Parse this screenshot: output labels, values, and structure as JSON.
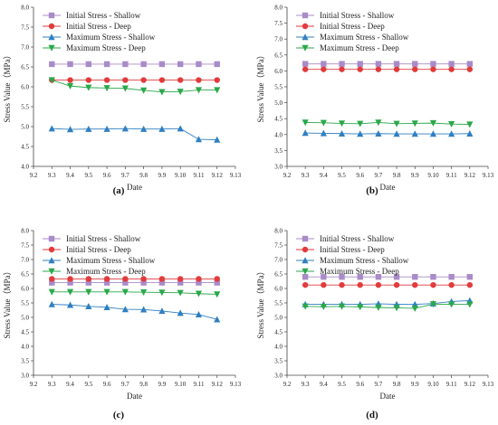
{
  "colors": {
    "initial_shallow": "#a98bc8",
    "initial_deep": "#e23b3b",
    "max_shallow": "#2f7fc1",
    "max_deep": "#2aa84a",
    "axis": "#444444"
  },
  "chart_data": [
    {
      "type": "line",
      "panel_label": "(a)",
      "xlabel": "Date",
      "ylabel": "Stress Value（MPa）",
      "x": [
        9.3,
        9.4,
        9.5,
        9.6,
        9.7,
        9.8,
        9.9,
        9.1,
        9.11,
        9.12
      ],
      "xlim": [
        9.2,
        9.13
      ],
      "x_ticks": [
        "9.2",
        "9.3",
        "9.4",
        "9.5",
        "9.6",
        "9.7",
        "9.8",
        "9.9",
        "9.10",
        "9.11",
        "9.12",
        "9.13"
      ],
      "ylim": [
        4.0,
        8.0
      ],
      "y_ticks": [
        "4.0",
        "4.5",
        "5.0",
        "5.5",
        "6.0",
        "6.5",
        "7.0",
        "7.5",
        "8.0"
      ],
      "legend_position": "top-left",
      "series": [
        {
          "name": "Initial Stress - Shallow",
          "marker": "square",
          "color_key": "initial_shallow",
          "values": [
            6.57,
            6.57,
            6.57,
            6.57,
            6.57,
            6.57,
            6.57,
            6.57,
            6.57,
            6.57
          ]
        },
        {
          "name": "Initial Stress - Deep",
          "marker": "circle",
          "color_key": "initial_deep",
          "values": [
            6.17,
            6.17,
            6.17,
            6.17,
            6.17,
            6.17,
            6.17,
            6.17,
            6.17,
            6.17
          ]
        },
        {
          "name": "Maximum Stress - Shallow",
          "marker": "triangle-up",
          "color_key": "max_shallow",
          "values": [
            4.95,
            4.93,
            4.94,
            4.94,
            4.95,
            4.94,
            4.94,
            4.95,
            4.68,
            4.67
          ]
        },
        {
          "name": "Maximum Stress - Deep",
          "marker": "triangle-down",
          "color_key": "max_deep",
          "values": [
            6.17,
            6.02,
            5.98,
            5.97,
            5.96,
            5.91,
            5.87,
            5.88,
            5.92,
            5.92
          ]
        }
      ]
    },
    {
      "type": "line",
      "panel_label": "(b)",
      "xlabel": "Date",
      "ylabel": "Stress Value（MPa）",
      "x": [
        9.3,
        9.4,
        9.5,
        9.6,
        9.7,
        9.8,
        9.9,
        9.1,
        9.11,
        9.12
      ],
      "xlim": [
        9.2,
        9.13
      ],
      "x_ticks": [
        "9.2",
        "9.3",
        "9.4",
        "9.5",
        "9.6",
        "9.7",
        "9.8",
        "9.9",
        "9.10",
        "9.11",
        "9.12",
        "9.13"
      ],
      "ylim": [
        3.0,
        8.0
      ],
      "y_ticks": [
        "3.0",
        "3.5",
        "4.0",
        "4.5",
        "5.0",
        "5.5",
        "6.0",
        "6.5",
        "7.0",
        "7.5",
        "8.0"
      ],
      "legend_position": "top-left",
      "series": [
        {
          "name": "Initial Stress - Shallow",
          "marker": "square",
          "color_key": "initial_shallow",
          "values": [
            6.22,
            6.22,
            6.22,
            6.22,
            6.22,
            6.22,
            6.22,
            6.22,
            6.22,
            6.22
          ]
        },
        {
          "name": "Initial Stress - Deep",
          "marker": "circle",
          "color_key": "initial_deep",
          "values": [
            6.05,
            6.05,
            6.05,
            6.05,
            6.05,
            6.05,
            6.05,
            6.05,
            6.05,
            6.05
          ]
        },
        {
          "name": "Maximum Stress - Shallow",
          "marker": "triangle-up",
          "color_key": "max_shallow",
          "values": [
            4.05,
            4.04,
            4.03,
            4.02,
            4.03,
            4.02,
            4.02,
            4.02,
            4.02,
            4.03
          ]
        },
        {
          "name": "Maximum Stress - Deep",
          "marker": "triangle-down",
          "color_key": "max_deep",
          "values": [
            4.38,
            4.37,
            4.35,
            4.34,
            4.38,
            4.34,
            4.35,
            4.36,
            4.33,
            4.32
          ]
        }
      ]
    },
    {
      "type": "line",
      "panel_label": "(c)",
      "xlabel": "Date",
      "ylabel": "Stress Value（MPa）",
      "x": [
        9.3,
        9.4,
        9.5,
        9.6,
        9.7,
        9.8,
        9.9,
        9.1,
        9.11,
        9.12
      ],
      "xlim": [
        9.2,
        9.13
      ],
      "x_ticks": [
        "9.2",
        "9.3",
        "9.4",
        "9.5",
        "9.6",
        "9.7",
        "9.8",
        "9.9",
        "9.10",
        "9.11",
        "9.12",
        "9.13"
      ],
      "ylim": [
        3.0,
        8.0
      ],
      "y_ticks": [
        "3.0",
        "3.5",
        "4.0",
        "4.5",
        "5.0",
        "5.5",
        "6.0",
        "6.5",
        "7.0",
        "7.5",
        "8.0"
      ],
      "legend_position": "top-left",
      "series": [
        {
          "name": "Initial Stress - Shallow",
          "marker": "square",
          "color_key": "initial_shallow",
          "values": [
            6.2,
            6.2,
            6.2,
            6.2,
            6.2,
            6.2,
            6.2,
            6.2,
            6.2,
            6.2
          ]
        },
        {
          "name": "Initial Stress - Deep",
          "marker": "circle",
          "color_key": "initial_deep",
          "values": [
            6.33,
            6.33,
            6.33,
            6.33,
            6.33,
            6.33,
            6.33,
            6.33,
            6.33,
            6.33
          ]
        },
        {
          "name": "Maximum Stress - Shallow",
          "marker": "triangle-up",
          "color_key": "max_shallow",
          "values": [
            5.45,
            5.43,
            5.38,
            5.35,
            5.28,
            5.27,
            5.22,
            5.15,
            5.1,
            4.93
          ]
        },
        {
          "name": "Maximum Stress - Deep",
          "marker": "triangle-down",
          "color_key": "max_deep",
          "values": [
            5.88,
            5.88,
            5.88,
            5.88,
            5.88,
            5.87,
            5.86,
            5.85,
            5.82,
            5.8
          ]
        }
      ]
    },
    {
      "type": "line",
      "panel_label": "(d)",
      "xlabel": "Date",
      "ylabel": "Stress Value（MPa）",
      "x": [
        9.3,
        9.4,
        9.5,
        9.6,
        9.7,
        9.8,
        9.9,
        9.1,
        9.11,
        9.12
      ],
      "xlim": [
        9.2,
        9.13
      ],
      "x_ticks": [
        "9.2",
        "9.3",
        "9.4",
        "9.5",
        "9.6",
        "9.7",
        "9.8",
        "9.9",
        "9.10",
        "9.11",
        "9.12",
        "9.13"
      ],
      "ylim": [
        3.0,
        8.0
      ],
      "y_ticks": [
        "3.0",
        "3.5",
        "4.0",
        "4.5",
        "5.0",
        "5.5",
        "6.0",
        "6.5",
        "7.0",
        "7.5",
        "8.0"
      ],
      "legend_position": "top-left",
      "series": [
        {
          "name": "Initial Stress - Shallow",
          "marker": "square",
          "color_key": "initial_shallow",
          "values": [
            6.4,
            6.4,
            6.4,
            6.4,
            6.4,
            6.4,
            6.4,
            6.4,
            6.4,
            6.4
          ]
        },
        {
          "name": "Initial Stress - Deep",
          "marker": "circle",
          "color_key": "initial_deep",
          "values": [
            6.12,
            6.12,
            6.12,
            6.12,
            6.12,
            6.12,
            6.12,
            6.12,
            6.12,
            6.12
          ]
        },
        {
          "name": "Maximum Stress - Shallow",
          "marker": "triangle-up",
          "color_key": "max_shallow",
          "values": [
            5.45,
            5.45,
            5.45,
            5.45,
            5.47,
            5.45,
            5.45,
            5.48,
            5.55,
            5.58
          ]
        },
        {
          "name": "Maximum Stress - Deep",
          "marker": "triangle-down",
          "color_key": "max_deep",
          "values": [
            5.38,
            5.37,
            5.38,
            5.36,
            5.34,
            5.33,
            5.31,
            5.46,
            5.45,
            5.45
          ]
        }
      ]
    }
  ]
}
